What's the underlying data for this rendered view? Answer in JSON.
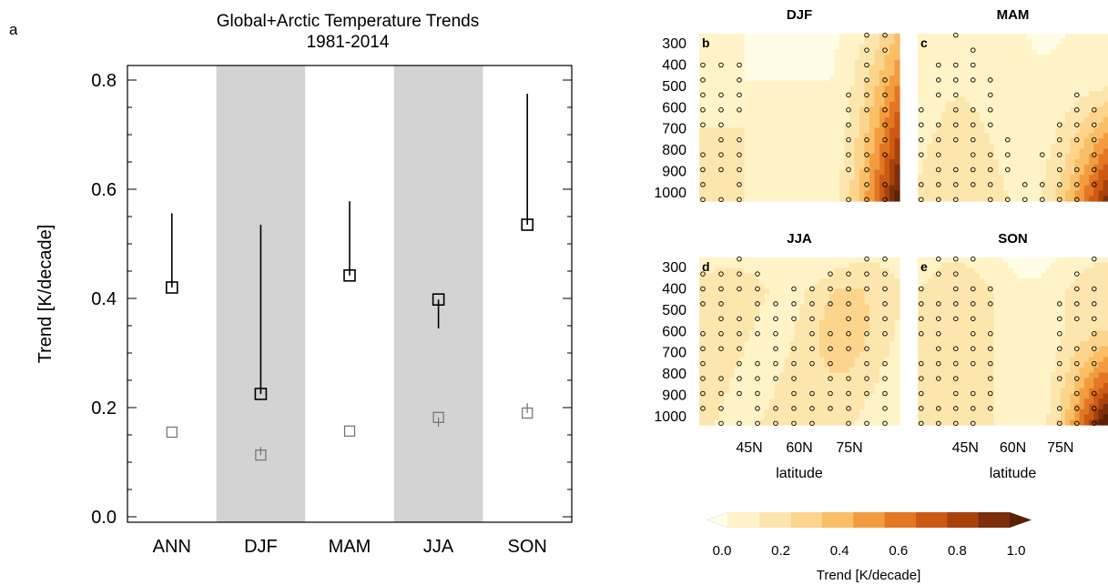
{
  "panel_label_a": "a",
  "chart_data": [
    {
      "type": "scatter",
      "panel": "a",
      "title": "Global+Arctic Temperature Trends",
      "subtitle": "1981-2014",
      "xlabel": "",
      "ylabel": "Trend [K/decade]",
      "categories": [
        "ANN",
        "DJF",
        "MAM",
        "JJA",
        "SON"
      ],
      "shaded_categories": [
        "DJF",
        "JJA"
      ],
      "ylim": [
        0.0,
        0.8
      ],
      "yticks": [
        "0.0",
        "0.2",
        "0.4",
        "0.6",
        "0.8"
      ],
      "series": [
        {
          "color": "#000000",
          "values": [
            0.42,
            0.225,
            0.442,
            0.398,
            0.535
          ],
          "err_low": [
            0.42,
            0.225,
            0.442,
            0.345,
            0.535
          ],
          "err_high": [
            0.556,
            0.535,
            0.578,
            0.398,
            0.775
          ]
        },
        {
          "color": "#707070",
          "values": [
            0.155,
            0.113,
            0.157,
            0.182,
            0.19
          ],
          "err_low": [
            0.155,
            0.113,
            0.157,
            0.165,
            0.19
          ],
          "err_high": [
            0.155,
            0.128,
            0.157,
            0.182,
            0.208
          ]
        }
      ]
    },
    {
      "type": "heatmap",
      "panels": [
        {
          "letter": "b",
          "title": "DJF"
        },
        {
          "letter": "c",
          "title": "MAM"
        },
        {
          "letter": "d",
          "title": "JJA"
        },
        {
          "letter": "e",
          "title": "SON"
        }
      ],
      "y_ticks": [
        "300",
        "400",
        "500",
        "600",
        "700",
        "800",
        "900",
        "1000"
      ],
      "y_range": [
        300,
        1000
      ],
      "x_range_degN": [
        30,
        90
      ],
      "x_ticks": [
        "45N",
        "60N",
        "75N"
      ],
      "x_tick_values": [
        45,
        60,
        75
      ],
      "xlabel": "latitude",
      "colorbar": {
        "label": "Trend [K/decade]",
        "tick_labels": [
          "0.0",
          "0.2",
          "0.4",
          "0.6",
          "0.8",
          "1.0"
        ],
        "levels": [
          0.0,
          0.1,
          0.2,
          0.3,
          0.4,
          0.5,
          0.6,
          0.7,
          0.8,
          0.9,
          1.0
        ],
        "colors": [
          "#fffde6",
          "#fff3c7",
          "#fde6ad",
          "#fcd48b",
          "#f9be66",
          "#f39c3f",
          "#e37723",
          "#cc5a14",
          "#a8420d",
          "#7c2f0a",
          "#5a2106"
        ],
        "extend": "both"
      }
    }
  ]
}
